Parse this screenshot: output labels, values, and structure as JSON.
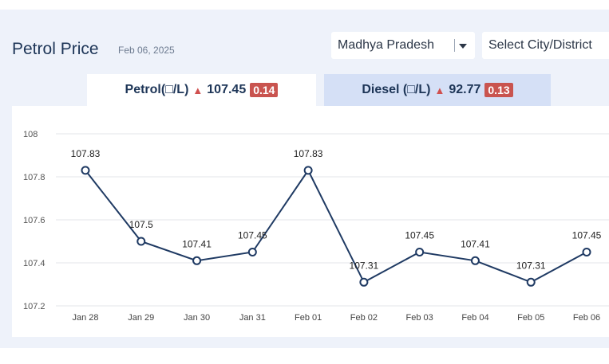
{
  "header": {
    "title": "Petrol Price",
    "date": "Feb 06, 2025"
  },
  "filters": {
    "state": "Madhya Pradesh",
    "city": "Select City/District"
  },
  "tabs": [
    {
      "label": "Petrol(□/L)",
      "price": "107.45",
      "change": "0.14",
      "active": true
    },
    {
      "label": "Diesel (□/L)",
      "price": "92.77",
      "change": "0.13",
      "active": false
    }
  ],
  "colors": {
    "line": "#1f3a63",
    "badge": "#c9544f",
    "active_tab": "#ffffff",
    "inactive_tab": "#d5e0f6"
  },
  "chart_data": {
    "type": "line",
    "categories": [
      "Jan 28",
      "Jan 29",
      "Jan 30",
      "Jan 31",
      "Feb 01",
      "Feb 02",
      "Feb 03",
      "Feb 04",
      "Feb 05",
      "Feb 06"
    ],
    "values": [
      107.83,
      107.5,
      107.41,
      107.45,
      107.83,
      107.31,
      107.45,
      107.41,
      107.31,
      107.45
    ],
    "data_labels": [
      "107.83",
      "107.5",
      "107.41",
      "107.45",
      "107.83",
      "107.31",
      "107.45",
      "107.41",
      "107.31",
      "107.45"
    ],
    "yticks": [
      "107.2",
      "107.4",
      "107.6",
      "107.8",
      "108"
    ],
    "ylim": [
      107.2,
      108
    ],
    "grid": true,
    "title": "",
    "xlabel": "",
    "ylabel": ""
  }
}
